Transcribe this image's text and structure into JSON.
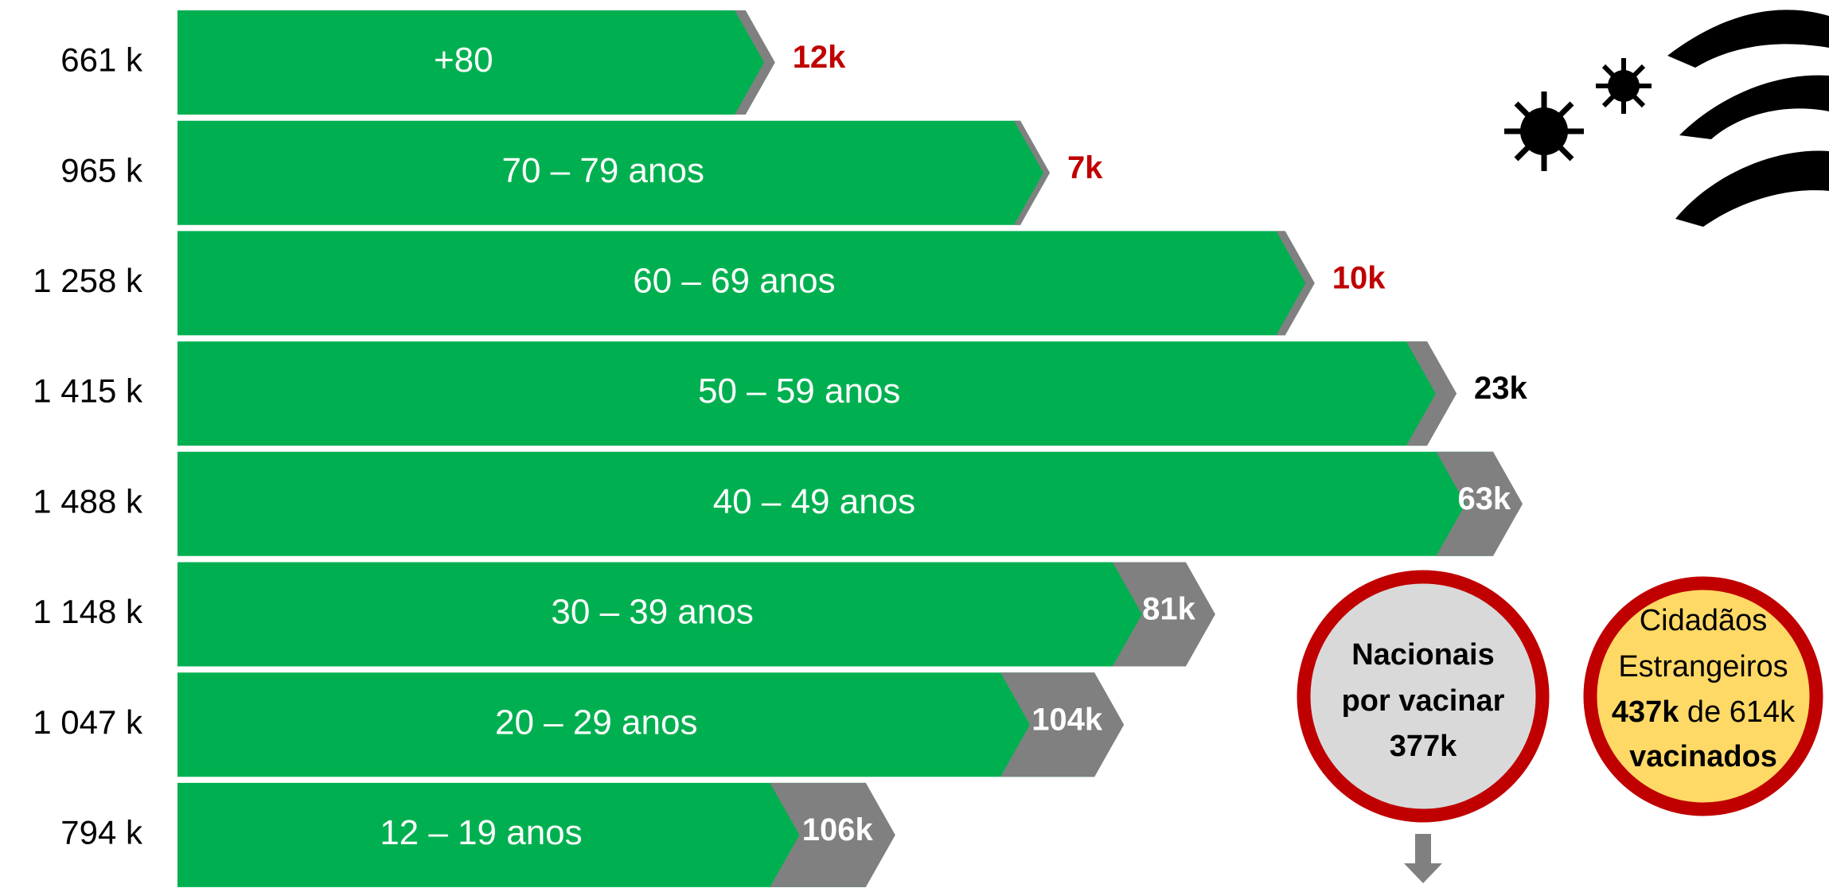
{
  "chart_data": {
    "type": "bar",
    "orientation": "horizontal",
    "categories": [
      "+80",
      "70 – 79 anos",
      "60 – 69 anos",
      "50 – 59 anos",
      "40 – 49 anos",
      "30 – 39 anos",
      "20 – 29 anos",
      "12 – 19 anos"
    ],
    "series": [
      {
        "color": "#00b050",
        "values": [
          661,
          965,
          1258,
          1415,
          1488,
          1148,
          1047,
          794
        ],
        "value_labels": [
          "661 k",
          "965 k",
          "1 258 k",
          "1 415 k",
          "1 488 k",
          "1 148 k",
          "1 047 k",
          "794 k"
        ]
      },
      {
        "color": "#808080",
        "values": [
          12,
          7,
          10,
          23,
          63,
          81,
          104,
          106
        ],
        "value_labels": [
          "12k",
          "7k",
          "10k",
          "23k",
          "63k",
          "81k",
          "104k",
          "106k"
        ],
        "value_label_colors": [
          "#c00000",
          "#c00000",
          "#c00000",
          "#000000",
          "#ffffff",
          "#ffffff",
          "#ffffff",
          "#ffffff"
        ]
      }
    ],
    "annotations": {
      "nacionais": {
        "line1": "Nacionais",
        "line2": "por vacinar",
        "line3": "377k"
      },
      "estrangeiros": {
        "line1": "Cidadãos",
        "line2": "Estrangeiros",
        "line3_bold": "437k",
        "line3_rest": " de 614k",
        "line4": "vacinados"
      }
    }
  }
}
